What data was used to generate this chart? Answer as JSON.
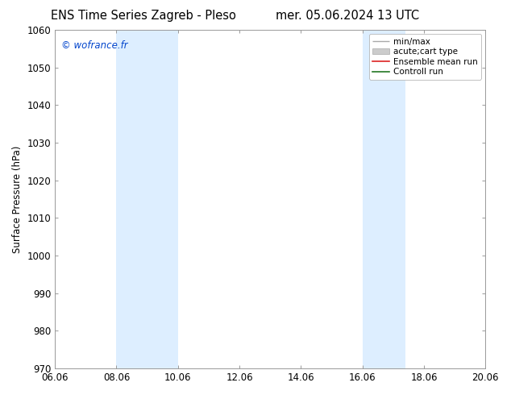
{
  "title_left": "ENS Time Series Zagreb - Pleso",
  "title_right": "mer. 05.06.2024 13 UTC",
  "ylabel": "Surface Pressure (hPa)",
  "ylim": [
    970,
    1060
  ],
  "yticks": [
    970,
    980,
    990,
    1000,
    1010,
    1020,
    1030,
    1040,
    1050,
    1060
  ],
  "xlim": [
    0,
    14
  ],
  "xtick_labels": [
    "06.06",
    "08.06",
    "10.06",
    "12.06",
    "14.06",
    "16.06",
    "18.06",
    "20.06"
  ],
  "xtick_positions": [
    0,
    2,
    4,
    6,
    8,
    10,
    12,
    14
  ],
  "shaded_bands": [
    {
      "x_start": 2,
      "x_end": 4
    },
    {
      "x_start": 10,
      "x_end": 11.4
    }
  ],
  "shaded_color": "#ddeeff",
  "watermark": "© wofrance.fr",
  "watermark_color": "#0044cc",
  "background_color": "#ffffff",
  "axes_bg_color": "#ffffff",
  "title_fontsize": 10.5,
  "tick_fontsize": 8.5,
  "ylabel_fontsize": 8.5,
  "legend_fontsize": 7.5,
  "grid_color": "#dddddd",
  "spine_color": "#999999"
}
